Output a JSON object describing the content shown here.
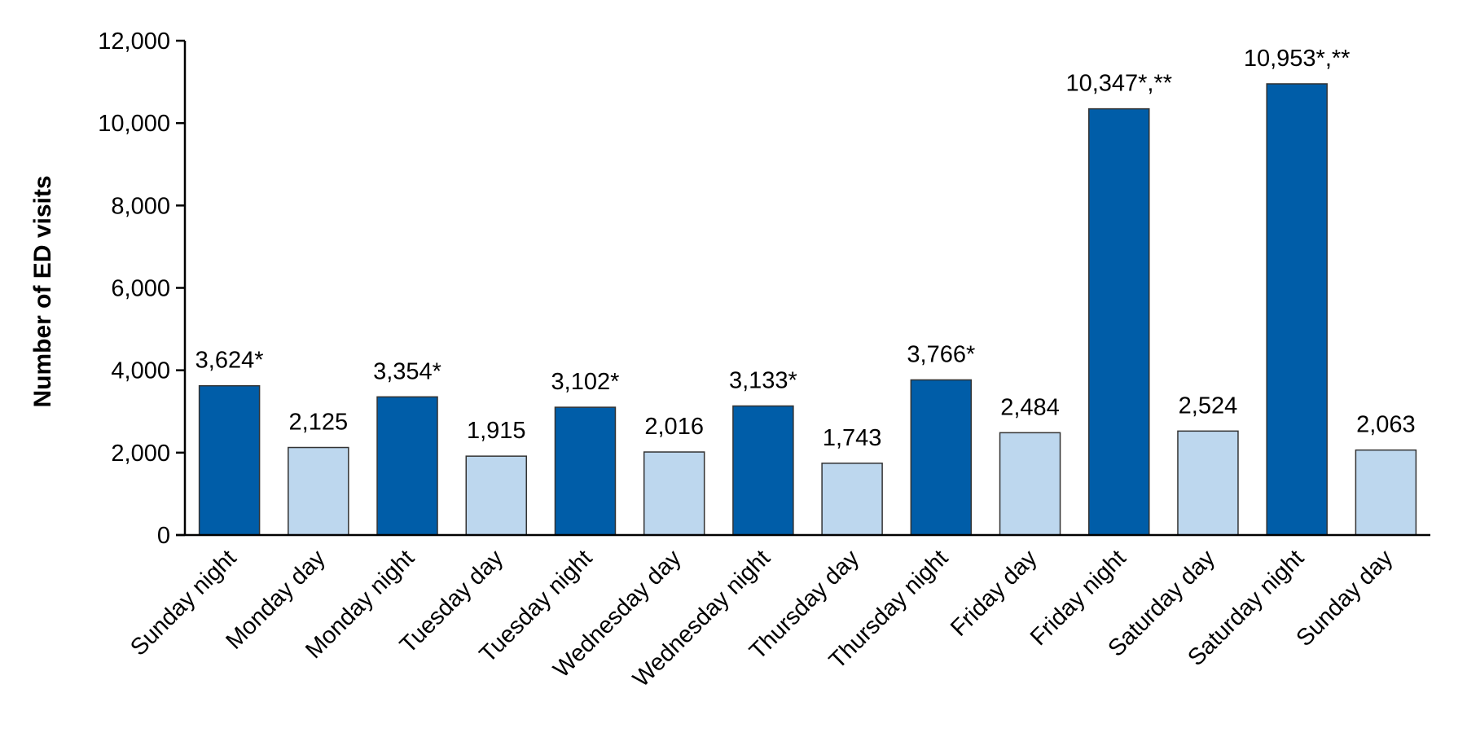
{
  "chart_data": {
    "type": "bar",
    "title": "",
    "xlabel": "",
    "ylabel": "Number of ED visits",
    "ylim": [
      0,
      12000
    ],
    "yticks": [
      0,
      2000,
      4000,
      6000,
      8000,
      10000,
      12000
    ],
    "ytick_labels": [
      "0",
      "2,000",
      "4,000",
      "6,000",
      "8,000",
      "10,000",
      "12,000"
    ],
    "grid": false,
    "legend": "none",
    "categories": [
      "Sunday night",
      "Monday day",
      "Monday night",
      "Tuesday day",
      "Tuesday night",
      "Wednesday day",
      "Wednesday night",
      "Thursday day",
      "Thursday night",
      "Friday day",
      "Friday night",
      "Saturday day",
      "Saturday night",
      "Sunday day"
    ],
    "values": [
      3624,
      2125,
      3354,
      1915,
      3102,
      2016,
      3133,
      1743,
      3766,
      2484,
      10347,
      2524,
      10953,
      2063
    ],
    "data_labels": [
      "3,624*",
      "2,125",
      "3,354*",
      "1,915",
      "3,102*",
      "2,016",
      "3,133*",
      "1,743",
      "3,766*",
      "2,484",
      "10,347*,**",
      "2,524",
      "10,953*,**",
      "2,063"
    ],
    "bar_kind": [
      "night",
      "day",
      "night",
      "day",
      "night",
      "day",
      "night",
      "day",
      "night",
      "day",
      "night",
      "day",
      "night",
      "day"
    ],
    "colors": {
      "night": "#005da8",
      "day": "#bdd7ee",
      "outline": "#333333"
    }
  }
}
